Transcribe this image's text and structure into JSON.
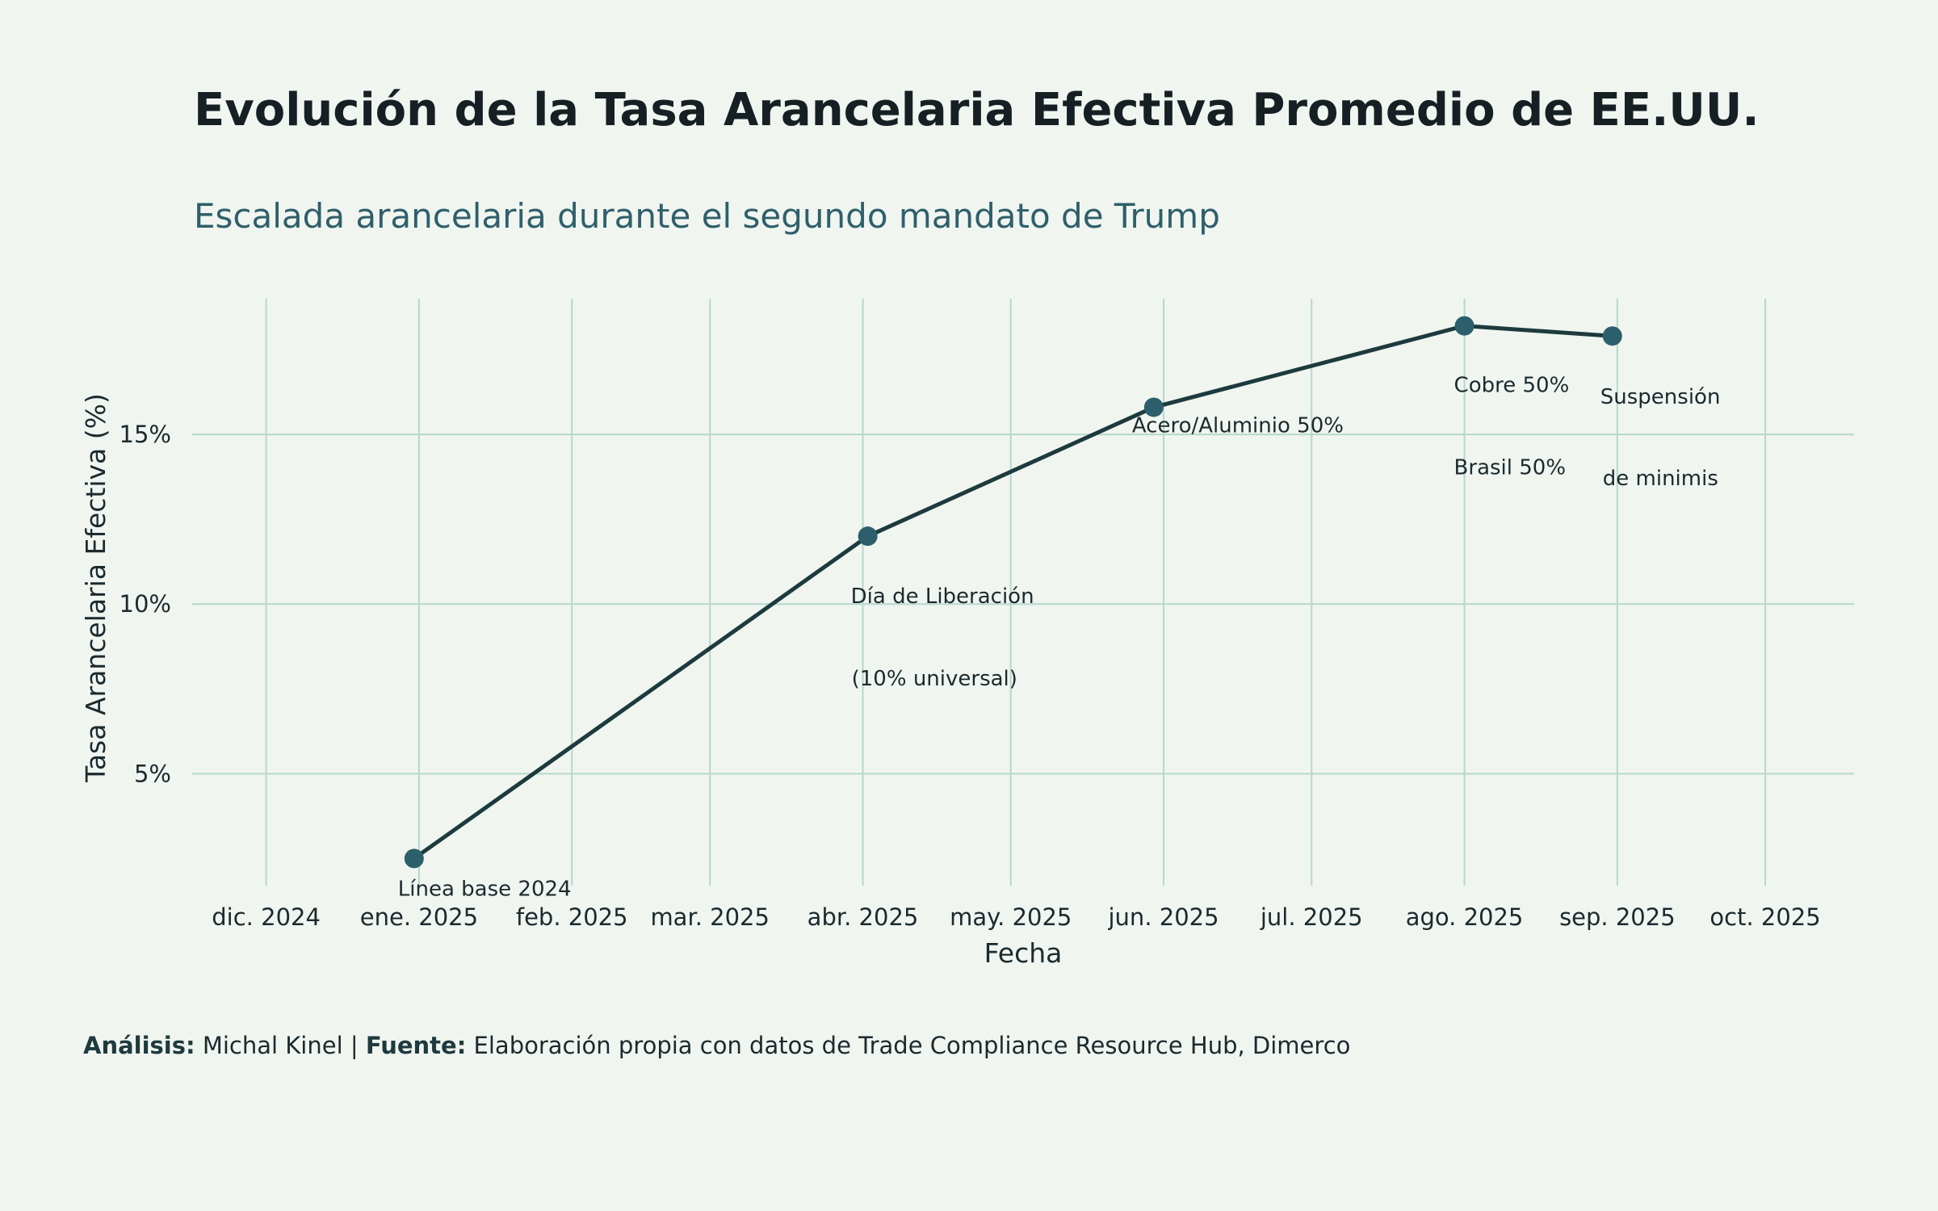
{
  "chart_data": {
    "type": "line",
    "title": "Evolución de la Tasa Arancelaria Efectiva Promedio de EE.UU.",
    "subtitle": "Escalada arancelaria durante el segundo mandato de Trump",
    "xlabel": "Fecha",
    "ylabel": "Tasa Arancelaria Efectiva (%)",
    "grid": true,
    "legend": "none",
    "xlim": [
      "2024-11-16",
      "2025-10-19"
    ],
    "ylim": [
      1.7,
      19.0
    ],
    "x_ticks": [
      {
        "date": "2024-12-01",
        "label": "dic. 2024"
      },
      {
        "date": "2025-01-01",
        "label": "ene. 2025"
      },
      {
        "date": "2025-02-01",
        "label": "feb. 2025"
      },
      {
        "date": "2025-03-01",
        "label": "mar. 2025"
      },
      {
        "date": "2025-04-01",
        "label": "abr. 2025"
      },
      {
        "date": "2025-05-01",
        "label": "may. 2025"
      },
      {
        "date": "2025-06-01",
        "label": "jun. 2025"
      },
      {
        "date": "2025-07-01",
        "label": "jul. 2025"
      },
      {
        "date": "2025-08-01",
        "label": "ago. 2025"
      },
      {
        "date": "2025-09-01",
        "label": "sep. 2025"
      },
      {
        "date": "2025-10-01",
        "label": "oct. 2025"
      }
    ],
    "y_ticks": [
      {
        "value": 5,
        "label": "5%"
      },
      {
        "value": 10,
        "label": "10%"
      },
      {
        "value": 15,
        "label": "15%"
      }
    ],
    "series": [
      {
        "name": "Tasa Arancelaria Efectiva",
        "color": "#1D3A3D",
        "marker_color": "#2C5F6B",
        "points": [
          {
            "date": "2024-12-31",
            "value": 2.5
          },
          {
            "date": "2025-04-02",
            "value": 12.0
          },
          {
            "date": "2025-05-30",
            "value": 15.8
          },
          {
            "date": "2025-08-01",
            "value": 18.2
          },
          {
            "date": "2025-08-31",
            "value": 17.9
          }
        ]
      }
    ],
    "annotations": [
      {
        "point": 0,
        "lines": [
          "Línea base 2024"
        ]
      },
      {
        "point": 1,
        "lines": [
          "Día de Liberación",
          "(10% universal)"
        ]
      },
      {
        "point": 2,
        "lines": [
          "Acero/Aluminio 50%"
        ]
      },
      {
        "point": 3,
        "lines": [
          "Cobre 50%",
          "Brasil 50%"
        ]
      },
      {
        "point": 4,
        "lines": [
          "Suspensión",
          "de minimis"
        ]
      }
    ]
  },
  "footer": {
    "analysis_label": "Análisis:",
    "analysis_value": "Michal Kinel",
    "separator": "|",
    "source_label": "Fuente:",
    "source_value": "Elaboración propia con datos de Trade Compliance Resource Hub, Dimerco"
  },
  "colors": {
    "background": "#F0F5F0",
    "grid": "#B5D8CC",
    "line": "#1D3A3D",
    "marker": "#2C5F6B",
    "title": "#162024",
    "subtitle": "#2F5F6B"
  }
}
